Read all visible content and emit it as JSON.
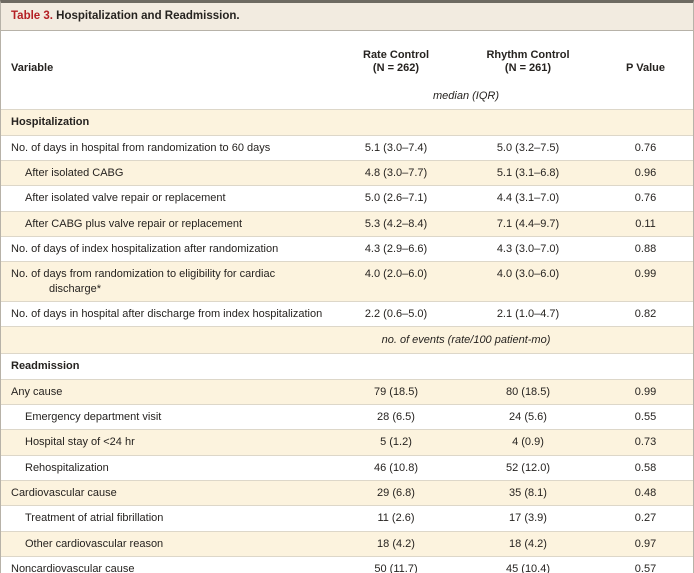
{
  "title": {
    "tag": "Table 3.",
    "text": "Hospitalization and Readmission."
  },
  "columns": {
    "variable": "Variable",
    "rate": {
      "name": "Rate Control",
      "n": "(N = 262)"
    },
    "rhythm": {
      "name": "Rhythm Control",
      "n": "(N = 261)"
    },
    "p": "P Value"
  },
  "units": {
    "median": "median (IQR)",
    "events": "no. of events (rate/100 patient-mo)"
  },
  "colors": {
    "accent_red": "#b42025",
    "title_bar_bg": "#f2ebe0",
    "shaded_row_bg": "#fcf3de",
    "top_rule": "#6e6a62",
    "hairline": "#ddd7c9"
  },
  "rows": [
    {
      "type": "section",
      "label": "Hospitalization"
    },
    {
      "type": "data",
      "indent": 0,
      "label": "No. of days in hospital from randomization to 60 days",
      "rate": "5.1 (3.0–7.4)",
      "rhythm": "5.0 (3.2–7.5)",
      "p": "0.76"
    },
    {
      "type": "data",
      "indent": 1,
      "label": "After isolated CABG",
      "rate": "4.8 (3.0–7.7)",
      "rhythm": "5.1 (3.1–6.8)",
      "p": "0.96"
    },
    {
      "type": "data",
      "indent": 1,
      "label": "After isolated valve repair or replacement",
      "rate": "5.0 (2.6–7.1)",
      "rhythm": "4.4 (3.1–7.0)",
      "p": "0.76"
    },
    {
      "type": "data",
      "indent": 1,
      "label": "After CABG plus valve repair or replacement",
      "rate": "5.3 (4.2–8.4)",
      "rhythm": "7.1 (4.4–9.7)",
      "p": "0.11"
    },
    {
      "type": "data",
      "indent": 0,
      "label": "No. of days of index hospitalization after randomization",
      "rate": "4.3 (2.9–6.6)",
      "rhythm": "4.3 (3.0–7.0)",
      "p": "0.88"
    },
    {
      "type": "data",
      "indent": 0,
      "label": "No. of days from randomization to eligibility for cardiac discharge*",
      "rate": "4.0 (2.0–6.0)",
      "rhythm": "4.0 (3.0–6.0)",
      "p": "0.99"
    },
    {
      "type": "data",
      "indent": 0,
      "label": "No. of days in hospital after discharge from index hospitalization",
      "rate": "2.2 (0.6–5.0)",
      "rhythm": "2.1 (1.0–4.7)",
      "p": "0.82"
    },
    {
      "type": "unit",
      "label": "no. of events (rate/100 patient-mo)"
    },
    {
      "type": "section",
      "label": "Readmission"
    },
    {
      "type": "data",
      "indent": 0,
      "label": "Any cause",
      "rate": "79 (18.5)",
      "rhythm": "80 (18.5)",
      "p": "0.99"
    },
    {
      "type": "data",
      "indent": 1,
      "label": "Emergency department visit",
      "rate": "28 (6.5)",
      "rhythm": "24 (5.6)",
      "p": "0.55"
    },
    {
      "type": "data",
      "indent": 1,
      "label": "Hospital stay of <24 hr",
      "rate": "5 (1.2)",
      "rhythm": "4 (0.9)",
      "p": "0.73"
    },
    {
      "type": "data",
      "indent": 1,
      "label": "Rehospitalization",
      "rate": "46 (10.8)",
      "rhythm": "52 (12.0)",
      "p": "0.58"
    },
    {
      "type": "data",
      "indent": 0,
      "label": "Cardiovascular cause",
      "rate": "29 (6.8)",
      "rhythm": "35 (8.1)",
      "p": "0.48"
    },
    {
      "type": "data",
      "indent": 1,
      "label": "Treatment of atrial fibrillation",
      "rate": "11 (2.6)",
      "rhythm": "17 (3.9)",
      "p": "0.27"
    },
    {
      "type": "data",
      "indent": 1,
      "label": "Other cardiovascular reason",
      "rate": "18 (4.2)",
      "rhythm": "18 (4.2)",
      "p": "0.97"
    },
    {
      "type": "data",
      "indent": 0,
      "label": "Noncardiovascular cause",
      "rate": "50 (11.7)",
      "rhythm": "45 (10.4)",
      "p": "0.57"
    }
  ]
}
